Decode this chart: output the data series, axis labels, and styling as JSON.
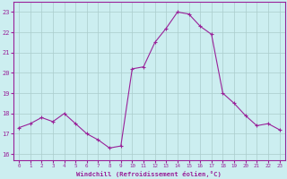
{
  "x": [
    0,
    1,
    2,
    3,
    4,
    5,
    6,
    7,
    8,
    9,
    10,
    11,
    12,
    13,
    14,
    15,
    16,
    17,
    18,
    19,
    20,
    21,
    22,
    23
  ],
  "y": [
    17.3,
    17.5,
    17.8,
    17.6,
    18.0,
    17.5,
    17.0,
    16.7,
    16.3,
    16.4,
    20.2,
    20.3,
    21.5,
    22.2,
    23.0,
    22.9,
    22.3,
    21.9,
    19.0,
    18.5,
    17.9,
    17.4,
    17.5,
    17.2
  ],
  "line_color": "#992299",
  "marker_color": "#992299",
  "bg_color": "#CCEEF0",
  "grid_color": "#AACCCC",
  "xlabel": "Windchill (Refroidissement éolien,°C)",
  "ylabel_ticks": [
    16,
    17,
    18,
    19,
    20,
    21,
    22,
    23
  ],
  "xlim": [
    -0.5,
    23.5
  ],
  "ylim": [
    15.7,
    23.5
  ],
  "tick_color": "#992299",
  "label_color": "#992299"
}
